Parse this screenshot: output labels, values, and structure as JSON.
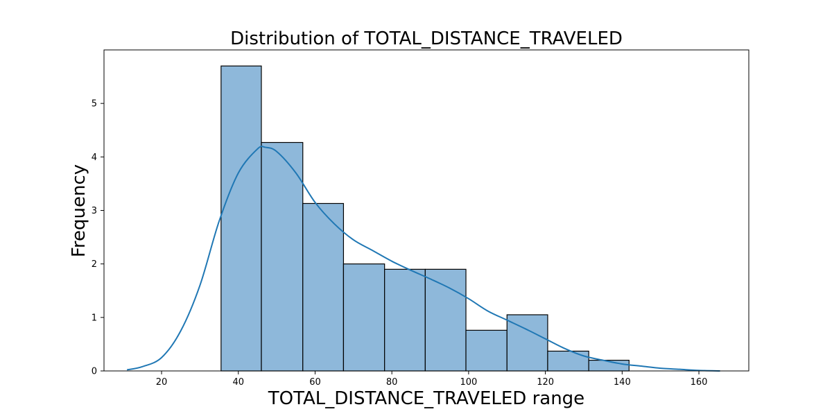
{
  "chart_data": {
    "type": "bar",
    "title": "Distribution of TOTAL_DISTANCE_TRAVELED",
    "xlabel": "TOTAL_DISTANCE_TRAVELED range",
    "ylabel": "Frequency",
    "xlim": [
      5,
      173
    ],
    "ylim": [
      0,
      6
    ],
    "x_ticks": [
      20,
      40,
      60,
      80,
      100,
      120,
      140,
      160
    ],
    "y_ticks": [
      0,
      1,
      2,
      3,
      4,
      5
    ],
    "grid": false,
    "bar_color": "#8eb8da",
    "line_color": "#1f77b4",
    "bins": [
      {
        "start": 35.5,
        "end": 46.0,
        "value": 5.7
      },
      {
        "start": 46.0,
        "end": 56.8,
        "value": 4.27
      },
      {
        "start": 56.8,
        "end": 67.4,
        "value": 3.13
      },
      {
        "start": 67.4,
        "end": 78.1,
        "value": 2.0
      },
      {
        "start": 78.1,
        "end": 88.7,
        "value": 1.9
      },
      {
        "start": 88.7,
        "end": 99.3,
        "value": 1.9
      },
      {
        "start": 99.3,
        "end": 110.0,
        "value": 0.76
      },
      {
        "start": 110.0,
        "end": 120.6,
        "value": 1.05
      },
      {
        "start": 120.6,
        "end": 131.3,
        "value": 0.37
      },
      {
        "start": 131.3,
        "end": 141.8,
        "value": 0.2
      }
    ],
    "kde": {
      "x": [
        11,
        15,
        20,
        25,
        30,
        35,
        40,
        45,
        47,
        50,
        55,
        60,
        65,
        70,
        75,
        80,
        85,
        90,
        95,
        100,
        105,
        110,
        115,
        120,
        125,
        130,
        135,
        140,
        145,
        150,
        155,
        160,
        165.5
      ],
      "y": [
        0.02,
        0.08,
        0.25,
        0.75,
        1.6,
        2.8,
        3.7,
        4.15,
        4.18,
        4.1,
        3.7,
        3.15,
        2.75,
        2.45,
        2.25,
        2.05,
        1.88,
        1.72,
        1.55,
        1.35,
        1.12,
        0.95,
        0.78,
        0.6,
        0.42,
        0.28,
        0.2,
        0.13,
        0.09,
        0.05,
        0.03,
        0.01,
        0.0
      ]
    }
  }
}
